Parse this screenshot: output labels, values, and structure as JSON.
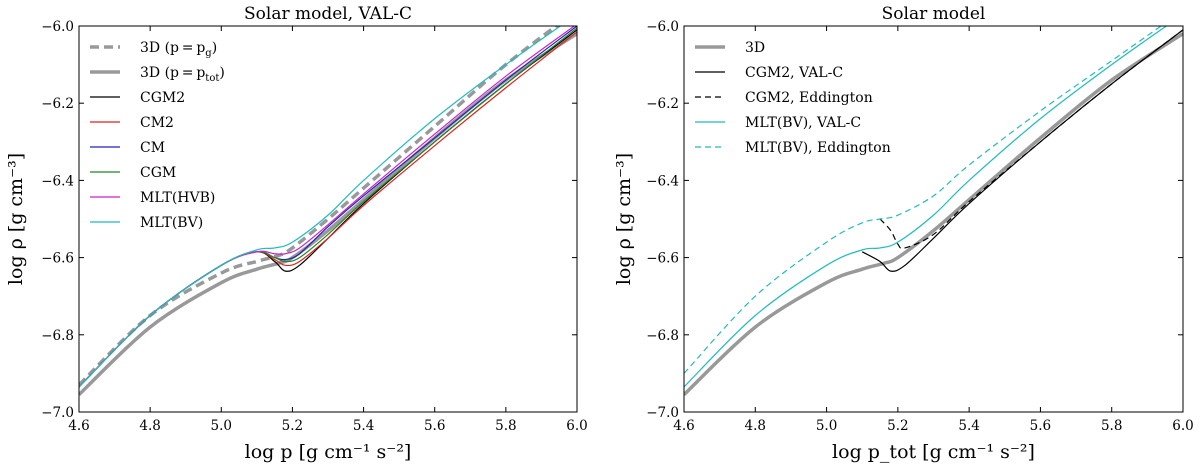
{
  "chart_data": [
    {
      "type": "line",
      "title": "Solar model, VAL-C",
      "xlabel": "log p [g cm⁻¹ s⁻²]",
      "ylabel": "log ρ [g cm⁻³]",
      "xlim": [
        4.6,
        6.0
      ],
      "ylim": [
        -7.0,
        -6.0
      ],
      "xticks": [
        4.6,
        4.8,
        5.0,
        5.2,
        5.4,
        5.6,
        5.8,
        6.0
      ],
      "yticks": [
        -7.0,
        -6.8,
        -6.6,
        -6.4,
        -6.2,
        -6.0
      ],
      "xtick_labels": [
        "4.6",
        "4.8",
        "5.0",
        "5.2",
        "5.4",
        "5.6",
        "5.8",
        "6.0"
      ],
      "ytick_labels": [
        "−7.0",
        "−6.8",
        "−6.6",
        "−6.4",
        "−6.2",
        "−6.0"
      ],
      "legend_position": "top-left",
      "series": [
        {
          "name": "3D (p=p_g)",
          "label": "3D",
          "label_math": "(p = p",
          "label_sub": "g",
          "label_end": ")",
          "color": "#999999",
          "style": "dashed",
          "width": "thick",
          "x": [
            4.6,
            4.8,
            5.0,
            5.1,
            5.16,
            5.2,
            5.3,
            5.4,
            5.6,
            5.8,
            6.0
          ],
          "y": [
            -6.93,
            -6.75,
            -6.64,
            -6.61,
            -6.595,
            -6.575,
            -6.5,
            -6.42,
            -6.26,
            -6.1,
            -5.96
          ]
        },
        {
          "name": "3D (p=p_tot)",
          "label": "3D",
          "label_math": "(p = p",
          "label_sub": "tot",
          "label_end": ")",
          "color": "#999999",
          "style": "solid",
          "width": "thick",
          "x": [
            4.6,
            4.8,
            5.0,
            5.1,
            5.16,
            5.2,
            5.3,
            5.4,
            5.6,
            5.8,
            6.0
          ],
          "y": [
            -6.955,
            -6.78,
            -6.665,
            -6.63,
            -6.615,
            -6.6,
            -6.53,
            -6.45,
            -6.29,
            -6.14,
            -6.02
          ]
        },
        {
          "name": "CGM2",
          "label": "CGM2",
          "color": "#000000",
          "style": "solid",
          "width": "thin",
          "x": [
            4.6,
            4.8,
            5.0,
            5.1,
            5.15,
            5.18,
            5.22,
            5.3,
            5.4,
            5.6,
            5.8,
            6.0
          ],
          "y": [
            -6.935,
            -6.75,
            -6.62,
            -6.585,
            -6.61,
            -6.635,
            -6.62,
            -6.55,
            -6.46,
            -6.3,
            -6.15,
            -6.01
          ]
        },
        {
          "name": "CM2",
          "label": "CM2",
          "color": "#dd2222",
          "style": "solid",
          "width": "thin",
          "x": [
            4.6,
            4.8,
            5.0,
            5.1,
            5.15,
            5.18,
            5.22,
            5.3,
            5.4,
            5.6,
            5.8,
            6.0
          ],
          "y": [
            -6.935,
            -6.75,
            -6.62,
            -6.585,
            -6.605,
            -6.62,
            -6.61,
            -6.55,
            -6.465,
            -6.31,
            -6.16,
            -6.015
          ]
        },
        {
          "name": "CM",
          "label": "CM",
          "color": "#2222bb",
          "style": "solid",
          "width": "thin",
          "x": [
            4.6,
            4.8,
            5.0,
            5.1,
            5.15,
            5.18,
            5.22,
            5.3,
            5.4,
            5.6,
            5.8,
            6.0
          ],
          "y": [
            -6.935,
            -6.75,
            -6.62,
            -6.585,
            -6.6,
            -6.605,
            -6.59,
            -6.52,
            -6.44,
            -6.29,
            -6.14,
            -6.0
          ]
        },
        {
          "name": "CGM",
          "label": "CGM",
          "color": "#228822",
          "style": "solid",
          "width": "thin",
          "x": [
            4.6,
            4.8,
            5.0,
            5.1,
            5.15,
            5.18,
            5.22,
            5.3,
            5.4,
            5.6,
            5.8,
            6.0
          ],
          "y": [
            -6.935,
            -6.75,
            -6.62,
            -6.585,
            -6.6,
            -6.61,
            -6.6,
            -6.54,
            -6.455,
            -6.3,
            -6.15,
            -6.005
          ]
        },
        {
          "name": "MLT(HVB)",
          "label": "MLT(HVB)",
          "color": "#cc22cc",
          "style": "solid",
          "width": "thin",
          "x": [
            4.6,
            4.8,
            5.0,
            5.1,
            5.15,
            5.18,
            5.22,
            5.3,
            5.4,
            5.6,
            5.8,
            6.0
          ],
          "y": [
            -6.935,
            -6.75,
            -6.62,
            -6.585,
            -6.59,
            -6.59,
            -6.575,
            -6.515,
            -6.435,
            -6.28,
            -6.13,
            -5.995
          ]
        },
        {
          "name": "MLT(BV)",
          "label": "MLT(BV)",
          "color": "#22bbbb",
          "style": "solid",
          "width": "thin",
          "x": [
            4.6,
            4.8,
            5.0,
            5.1,
            5.15,
            5.2,
            5.3,
            5.4,
            5.6,
            5.8,
            6.0
          ],
          "y": [
            -6.935,
            -6.75,
            -6.62,
            -6.58,
            -6.575,
            -6.56,
            -6.49,
            -6.4,
            -6.24,
            -6.1,
            -5.97
          ]
        }
      ]
    },
    {
      "type": "line",
      "title": "Solar model",
      "xlabel": "log p_tot [g cm⁻¹ s⁻²]",
      "ylabel": "log ρ [g cm⁻³]",
      "xlim": [
        4.6,
        6.0
      ],
      "ylim": [
        -7.0,
        -6.0
      ],
      "xticks": [
        4.6,
        4.8,
        5.0,
        5.2,
        5.4,
        5.6,
        5.8,
        6.0
      ],
      "yticks": [
        -7.0,
        -6.8,
        -6.6,
        -6.4,
        -6.2,
        -6.0
      ],
      "xtick_labels": [
        "4.6",
        "4.8",
        "5.0",
        "5.2",
        "5.4",
        "5.6",
        "5.8",
        "6.0"
      ],
      "ytick_labels": [
        "−7.0",
        "−6.8",
        "−6.6",
        "−6.4",
        "−6.2",
        "−6.0"
      ],
      "legend_position": "top-left",
      "series": [
        {
          "name": "3D",
          "label": "3D",
          "color": "#999999",
          "style": "solid",
          "width": "thick",
          "x": [
            4.6,
            4.8,
            5.0,
            5.1,
            5.16,
            5.2,
            5.3,
            5.4,
            5.6,
            5.8,
            6.0
          ],
          "y": [
            -6.955,
            -6.78,
            -6.665,
            -6.63,
            -6.615,
            -6.6,
            -6.53,
            -6.45,
            -6.29,
            -6.14,
            -6.02
          ]
        },
        {
          "name": "CGM2, VAL-C",
          "label": "CGM2, VAL-C",
          "color": "#000000",
          "style": "solid",
          "width": "thin",
          "x": [
            5.1,
            5.15,
            5.18,
            5.22,
            5.3,
            5.4,
            5.6,
            5.8,
            6.0
          ],
          "y": [
            -6.585,
            -6.61,
            -6.635,
            -6.62,
            -6.55,
            -6.46,
            -6.3,
            -6.15,
            -6.01
          ]
        },
        {
          "name": "CGM2, Eddington",
          "label": "CGM2, Eddington",
          "color": "#000000",
          "style": "dashed",
          "width": "thin",
          "x": [
            5.15,
            5.18,
            5.2,
            5.22,
            5.3,
            5.4,
            5.6,
            5.8,
            6.0
          ],
          "y": [
            -6.5,
            -6.53,
            -6.565,
            -6.575,
            -6.54,
            -6.455,
            -6.3,
            -6.15,
            -6.01
          ]
        },
        {
          "name": "MLT(BV), VAL-C",
          "label": "MLT(BV), VAL-C",
          "color": "#22bbbb",
          "style": "solid",
          "width": "thin",
          "x": [
            4.6,
            4.8,
            5.0,
            5.1,
            5.15,
            5.2,
            5.3,
            5.4,
            5.6,
            5.8,
            6.0
          ],
          "y": [
            -6.935,
            -6.75,
            -6.62,
            -6.58,
            -6.575,
            -6.56,
            -6.49,
            -6.4,
            -6.24,
            -6.1,
            -5.97
          ]
        },
        {
          "name": "MLT(BV), Eddington",
          "label": "MLT(BV), Eddington",
          "color": "#22bbbb",
          "style": "dashed",
          "width": "thin",
          "x": [
            4.6,
            4.8,
            5.0,
            5.1,
            5.15,
            5.2,
            5.3,
            5.4,
            5.6,
            5.8,
            6.0
          ],
          "y": [
            -6.9,
            -6.7,
            -6.56,
            -6.51,
            -6.5,
            -6.49,
            -6.44,
            -6.36,
            -6.22,
            -6.09,
            -5.96
          ]
        }
      ]
    }
  ]
}
